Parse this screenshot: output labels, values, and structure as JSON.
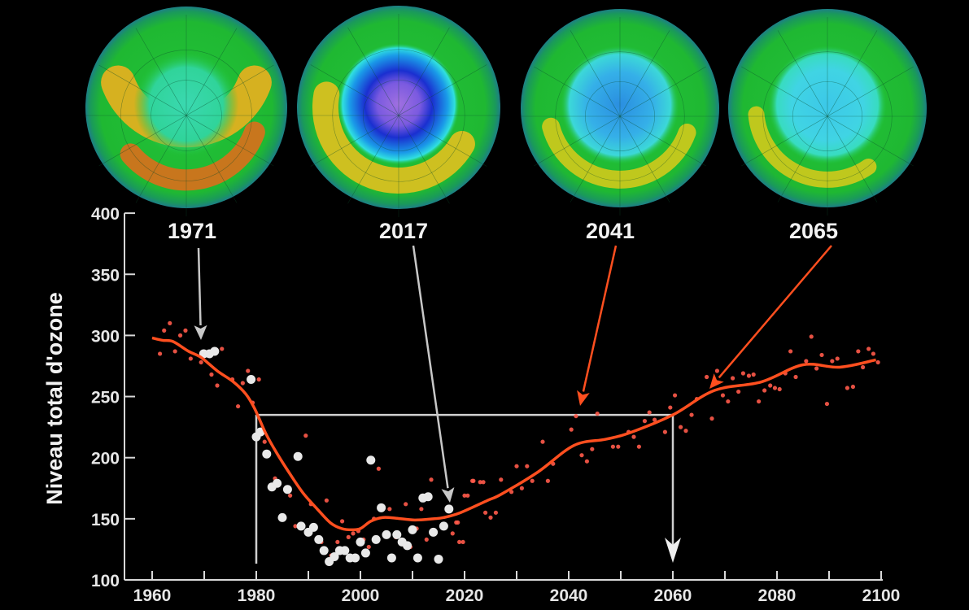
{
  "chart_data": {
    "type": "line",
    "title": "",
    "xlabel": "",
    "ylabel": "Niveau total d'ozone",
    "xlim": [
      1960,
      2100
    ],
    "ylim": [
      100,
      400
    ],
    "x_ticks": [
      1960,
      1980,
      2000,
      2020,
      2040,
      2060,
      2080,
      2100
    ],
    "y_ticks": [
      100,
      150,
      200,
      250,
      300,
      350,
      400
    ],
    "grid": false,
    "colors": {
      "curve": "#ff4f1f",
      "model_points": "#ff5a4a",
      "observed_points": "#e8e8e8",
      "guides": "#d0d0d0"
    },
    "globe_labels": [
      {
        "label": "1971",
        "year": 1971,
        "arrow_color": "#c8c8c8",
        "hole": "none"
      },
      {
        "label": "2017",
        "year": 2017,
        "arrow_color": "#c8c8c8",
        "hole": "deep"
      },
      {
        "label": "2041",
        "year": 2041,
        "arrow_color": "#ff4f1f",
        "hole": "moderate"
      },
      {
        "label": "2065",
        "year": 2065,
        "arrow_color": "#ff4f1f",
        "hole": "slight"
      }
    ],
    "reference_level": {
      "value": 235,
      "from_year": 1980,
      "to_year": 2060
    },
    "series": [
      {
        "kind": "smoothed-curve",
        "points": [
          [
            1960,
            298
          ],
          [
            1962,
            296
          ],
          [
            1964,
            295
          ],
          [
            1967,
            287
          ],
          [
            1969.4,
            282
          ],
          [
            1972.5,
            271
          ],
          [
            1975.6,
            262
          ],
          [
            1978,
            252
          ],
          [
            1979.7,
            240
          ],
          [
            1981.8,
            220
          ],
          [
            1983.9,
            204
          ],
          [
            1986.5,
            186.5
          ],
          [
            1989,
            171
          ],
          [
            1991.7,
            158
          ],
          [
            1994.3,
            146.5
          ],
          [
            1996.4,
            142
          ],
          [
            1998.4,
            141
          ],
          [
            2000,
            142
          ],
          [
            2002,
            148
          ],
          [
            2004.2,
            151
          ],
          [
            2006.8,
            150.5
          ],
          [
            2010.4,
            149
          ],
          [
            2014,
            150
          ],
          [
            2016,
            151
          ],
          [
            2019.2,
            155
          ],
          [
            2024.4,
            165
          ],
          [
            2027,
            170
          ],
          [
            2034,
            188
          ],
          [
            2041,
            210
          ],
          [
            2047,
            215
          ],
          [
            2051.5,
            220
          ],
          [
            2060,
            235
          ],
          [
            2068,
            255
          ],
          [
            2077,
            262
          ],
          [
            2085,
            276
          ],
          [
            2092,
            274
          ],
          [
            2099,
            280
          ]
        ]
      },
      {
        "kind": "model-points",
        "points": [
          [
            1961.5,
            285
          ],
          [
            1962.3,
            304
          ],
          [
            1963.4,
            310
          ],
          [
            1964.4,
            287
          ],
          [
            1965.4,
            300
          ],
          [
            1966.4,
            304
          ],
          [
            1967.4,
            281
          ],
          [
            1969.4,
            278
          ],
          [
            1971.4,
            268
          ],
          [
            1972.5,
            259
          ],
          [
            1973.4,
            289
          ],
          [
            1975.4,
            264
          ],
          [
            1976.5,
            242
          ],
          [
            1977.4,
            261
          ],
          [
            1978.4,
            271
          ],
          [
            1979.3,
            245
          ],
          [
            1980.5,
            264
          ],
          [
            1981.6,
            213
          ],
          [
            1983.6,
            183
          ],
          [
            1986.5,
            169
          ],
          [
            1987.5,
            144
          ],
          [
            1989.5,
            218
          ],
          [
            1990.5,
            162
          ],
          [
            1992.5,
            131
          ],
          [
            1993.5,
            165
          ],
          [
            1994.4,
            120
          ],
          [
            1995.6,
            131
          ],
          [
            1996.5,
            148
          ],
          [
            1997.7,
            135
          ],
          [
            1998.6,
            138
          ],
          [
            1999.6,
            140
          ],
          [
            2000.6,
            133
          ],
          [
            2001.6,
            127
          ],
          [
            2002.6,
            150
          ],
          [
            2003.5,
            191
          ],
          [
            2005.6,
            158
          ],
          [
            2006.8,
            135
          ],
          [
            2008.7,
            162
          ],
          [
            2009.6,
            127
          ],
          [
            2010.8,
            142
          ],
          [
            2011.7,
            158
          ],
          [
            2012.7,
            133
          ],
          [
            2013.6,
            182
          ],
          [
            2017.7,
            138
          ],
          [
            2018.4,
            147
          ],
          [
            2018.7,
            147
          ],
          [
            2019,
            131
          ],
          [
            2019.7,
            131
          ],
          [
            2020,
            169
          ],
          [
            2020.6,
            169
          ],
          [
            2021.5,
            181
          ],
          [
            2021.7,
            181
          ],
          [
            2023,
            180
          ],
          [
            2023.6,
            180
          ],
          [
            2024,
            155
          ],
          [
            2025,
            151
          ],
          [
            2026,
            155
          ],
          [
            2027,
            182
          ],
          [
            2029,
            172
          ],
          [
            2030,
            193
          ],
          [
            2031,
            175
          ],
          [
            2032,
            193
          ],
          [
            2033,
            181
          ],
          [
            2035,
            213
          ],
          [
            2036,
            181
          ],
          [
            2037,
            195
          ],
          [
            2040.5,
            223
          ],
          [
            2041.4,
            234
          ],
          [
            2042.5,
            202
          ],
          [
            2043.5,
            197
          ],
          [
            2044.5,
            207
          ],
          [
            2045.5,
            236
          ],
          [
            2048.5,
            209
          ],
          [
            2049.5,
            209
          ],
          [
            2051.5,
            221
          ],
          [
            2052.5,
            217
          ],
          [
            2053.5,
            209
          ],
          [
            2054.6,
            230
          ],
          [
            2055.5,
            237
          ],
          [
            2056.5,
            231
          ],
          [
            2058.5,
            221
          ],
          [
            2059.5,
            241
          ],
          [
            2060.4,
            251
          ],
          [
            2061.5,
            225
          ],
          [
            2062.5,
            222
          ],
          [
            2063.6,
            235
          ],
          [
            2064.6,
            248
          ],
          [
            2066.5,
            266
          ],
          [
            2067.5,
            232
          ],
          [
            2068.5,
            271
          ],
          [
            2069.6,
            251
          ],
          [
            2070.6,
            246
          ],
          [
            2071.5,
            265
          ],
          [
            2072.6,
            254
          ],
          [
            2073.5,
            269
          ],
          [
            2074.6,
            267
          ],
          [
            2075.5,
            268
          ],
          [
            2076.5,
            246
          ],
          [
            2077.6,
            255
          ],
          [
            2078.7,
            259
          ],
          [
            2079.6,
            257
          ],
          [
            2080.5,
            256
          ],
          [
            2081.6,
            269
          ],
          [
            2082.6,
            287
          ],
          [
            2083.6,
            266
          ],
          [
            2085.6,
            279
          ],
          [
            2086.6,
            299
          ],
          [
            2087.6,
            273
          ],
          [
            2088.6,
            284
          ],
          [
            2089.6,
            244
          ],
          [
            2090.6,
            279
          ],
          [
            2091.6,
            281
          ],
          [
            2093.5,
            257
          ],
          [
            2094.6,
            258
          ],
          [
            2095.6,
            287
          ],
          [
            2096.5,
            274
          ],
          [
            2097.6,
            289
          ],
          [
            2098.5,
            285
          ],
          [
            2099.4,
            278
          ]
        ]
      },
      {
        "kind": "observed-points",
        "points": [
          [
            1969.9,
            285
          ],
          [
            1971,
            285
          ],
          [
            1972,
            287
          ],
          [
            1979,
            264
          ],
          [
            1980,
            217
          ],
          [
            1980.8,
            221
          ],
          [
            1982,
            203
          ],
          [
            1983,
            176
          ],
          [
            1984,
            179
          ],
          [
            1985,
            151
          ],
          [
            1986,
            174
          ],
          [
            1988,
            201
          ],
          [
            1988.6,
            144
          ],
          [
            1990,
            139
          ],
          [
            1991,
            143
          ],
          [
            1992,
            133
          ],
          [
            1993,
            124
          ],
          [
            1994,
            115
          ],
          [
            1995,
            119
          ],
          [
            1996,
            124
          ],
          [
            1997,
            124
          ],
          [
            1998,
            118
          ],
          [
            1999,
            118
          ],
          [
            2000,
            131
          ],
          [
            2001,
            122
          ],
          [
            2002,
            198
          ],
          [
            2003,
            133
          ],
          [
            2004,
            159
          ],
          [
            2005,
            137
          ],
          [
            2006,
            118
          ],
          [
            2007,
            137
          ],
          [
            2008,
            131
          ],
          [
            2009,
            128
          ],
          [
            2010,
            141
          ],
          [
            2011,
            118
          ],
          [
            2012,
            167
          ],
          [
            2013,
            168
          ],
          [
            2014,
            139
          ],
          [
            2015,
            117
          ],
          [
            2016,
            144
          ],
          [
            2017,
            158
          ]
        ]
      }
    ]
  }
}
